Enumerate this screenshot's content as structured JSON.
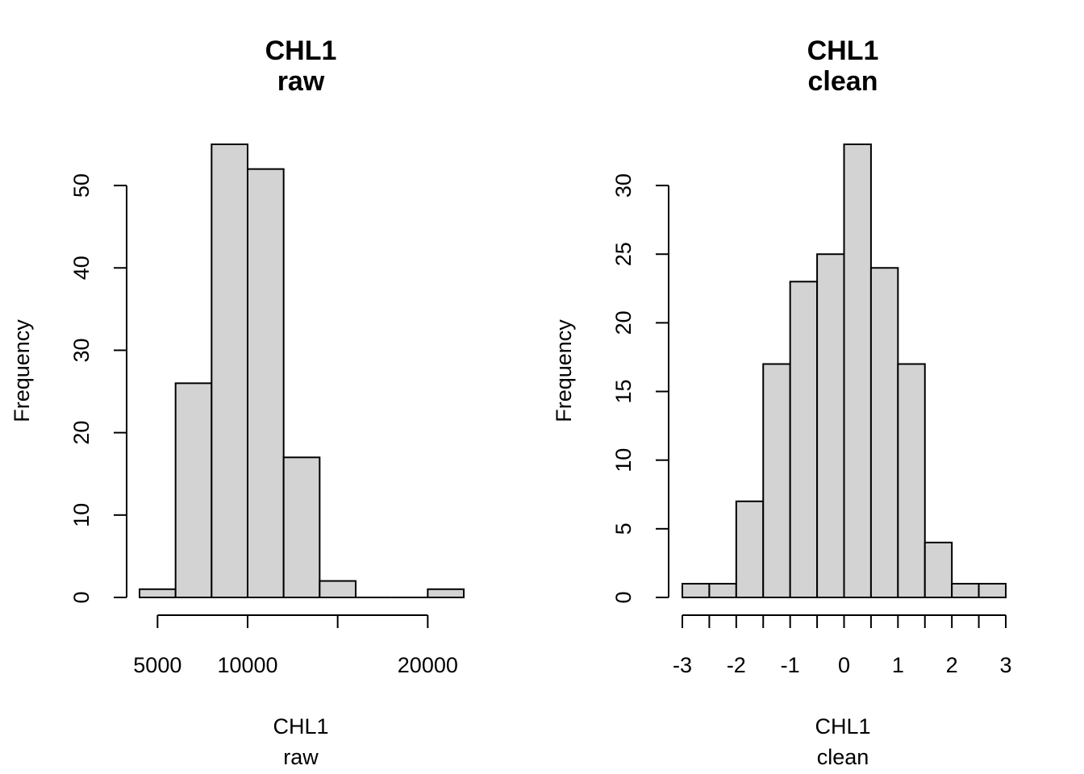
{
  "figure": {
    "background": "#ffffff",
    "bar_fill": "#d3d3d3",
    "stroke": "#000000"
  },
  "chart_data": [
    {
      "type": "bar",
      "title": [
        "CHL1",
        "raw"
      ],
      "xlabel": [
        "CHL1",
        "raw"
      ],
      "ylabel": "Frequency",
      "bins": [
        {
          "x0": 4000,
          "x1": 6000,
          "count": 1
        },
        {
          "x0": 6000,
          "x1": 8000,
          "count": 26
        },
        {
          "x0": 8000,
          "x1": 10000,
          "count": 55
        },
        {
          "x0": 10000,
          "x1": 12000,
          "count": 52
        },
        {
          "x0": 12000,
          "x1": 14000,
          "count": 17
        },
        {
          "x0": 14000,
          "x1": 16000,
          "count": 2
        },
        {
          "x0": 16000,
          "x1": 18000,
          "count": 0
        },
        {
          "x0": 18000,
          "x1": 20000,
          "count": 0
        },
        {
          "x0": 20000,
          "x1": 22000,
          "count": 1
        }
      ],
      "xlim": [
        4000,
        22000
      ],
      "ylim": [
        0,
        55
      ],
      "x_axis_range": [
        5000,
        20000
      ],
      "x_ticks": [
        5000,
        10000,
        15000,
        20000
      ],
      "x_tick_labels": [
        "5000",
        "10000",
        "",
        "20000"
      ],
      "y_ticks": [
        0,
        10,
        20,
        30,
        40,
        50
      ],
      "y_tick_labels": [
        "0",
        "10",
        "20",
        "30",
        "40",
        "50"
      ],
      "grid": false,
      "legend": "none"
    },
    {
      "type": "bar",
      "title": [
        "CHL1",
        "clean"
      ],
      "xlabel": [
        "CHL1",
        "clean"
      ],
      "ylabel": "Frequency",
      "bins": [
        {
          "x0": -3.0,
          "x1": -2.5,
          "count": 1
        },
        {
          "x0": -2.5,
          "x1": -2.0,
          "count": 1
        },
        {
          "x0": -2.0,
          "x1": -1.5,
          "count": 7
        },
        {
          "x0": -1.5,
          "x1": -1.0,
          "count": 17
        },
        {
          "x0": -1.0,
          "x1": -0.5,
          "count": 23
        },
        {
          "x0": -0.5,
          "x1": 0.0,
          "count": 25
        },
        {
          "x0": 0.0,
          "x1": 0.5,
          "count": 33
        },
        {
          "x0": 0.5,
          "x1": 1.0,
          "count": 24
        },
        {
          "x0": 1.0,
          "x1": 1.5,
          "count": 17
        },
        {
          "x0": 1.5,
          "x1": 2.0,
          "count": 4
        },
        {
          "x0": 2.0,
          "x1": 2.5,
          "count": 1
        },
        {
          "x0": 2.5,
          "x1": 3.0,
          "count": 1
        }
      ],
      "xlim": [
        -3,
        3
      ],
      "ylim": [
        0,
        33
      ],
      "x_axis_range": [
        -3,
        3
      ],
      "x_ticks": [
        -3,
        -2.5,
        -2,
        -1.5,
        -1,
        -0.5,
        0,
        0.5,
        1,
        1.5,
        2,
        2.5,
        3
      ],
      "x_tick_labels": [
        "-3",
        "",
        "-2",
        "",
        "-1",
        "",
        "0",
        "",
        "1",
        "",
        "2",
        "",
        "3"
      ],
      "y_ticks": [
        0,
        5,
        10,
        15,
        20,
        25,
        30
      ],
      "y_tick_labels": [
        "0",
        "5",
        "10",
        "15",
        "20",
        "25",
        "30"
      ],
      "grid": false,
      "legend": "none"
    }
  ]
}
